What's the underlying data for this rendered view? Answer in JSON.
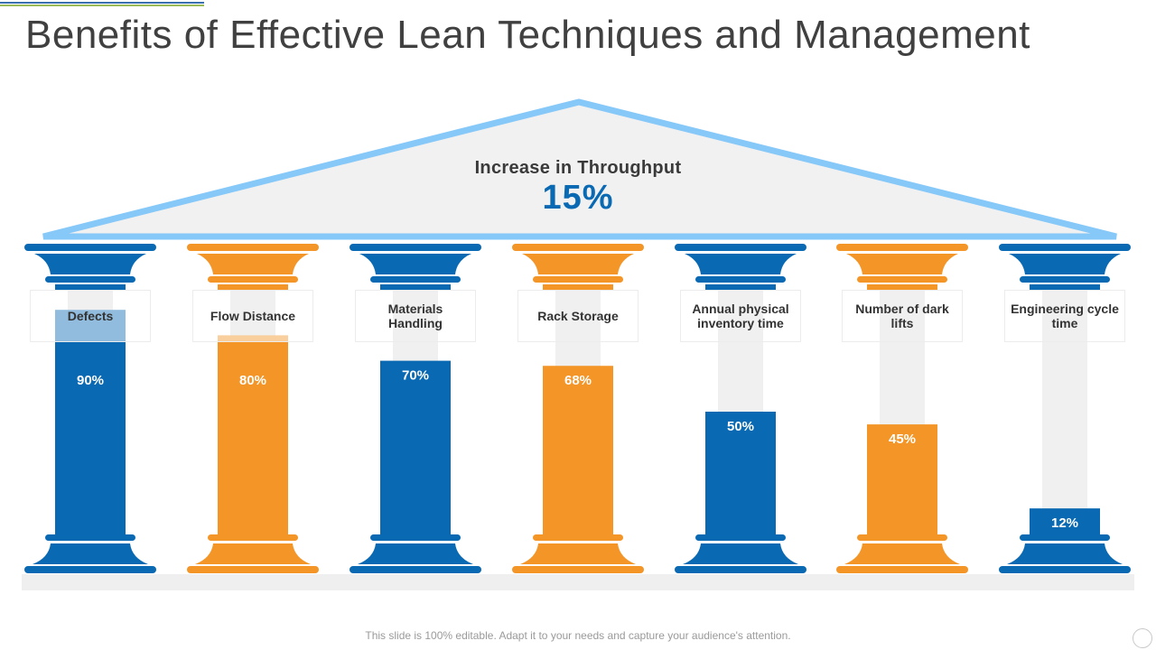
{
  "title": "Benefits of Effective Lean Techniques and Management",
  "footer": "This slide is 100% editable. Adapt it to your needs and capture your audience's attention.",
  "colors": {
    "blue": "#0a69b3",
    "orange": "#f39527",
    "light_blue": "#86c8f8",
    "roof_fill": "#f1f1f1",
    "track": "#f0f0f0",
    "topline_blue": "#3a6fb0",
    "topline_green": "#9bbb59"
  },
  "chart_data": {
    "type": "bar",
    "title": "Increase in Throughput",
    "headline_value": "15%",
    "categories": [
      "Defects",
      "Flow Distance",
      "Materials Handling",
      "Rack Storage",
      "Annual physical inventory time",
      "Number of dark lifts",
      "Engineering cycle time"
    ],
    "values": [
      90,
      80,
      70,
      68,
      50,
      45,
      12
    ],
    "value_labels": [
      "90%",
      "80%",
      "70%",
      "68%",
      "50%",
      "45%",
      "12%"
    ],
    "bar_colors": [
      "blue",
      "orange",
      "blue",
      "orange",
      "blue",
      "orange",
      "blue"
    ],
    "ylim": [
      0,
      100
    ],
    "grid": false,
    "legend": "none"
  }
}
